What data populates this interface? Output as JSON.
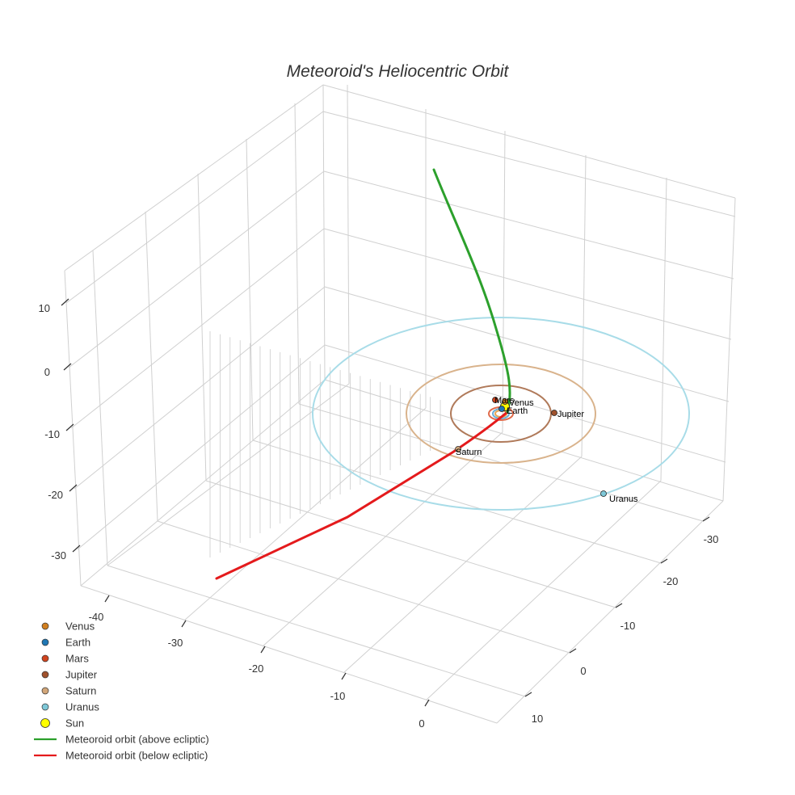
{
  "chart_data": {
    "type": "scatter3d",
    "title": "Meteoroid's Heliocentric Orbit",
    "axes": {
      "x": {
        "ticks": [
          "-40",
          "-30",
          "-20",
          "-10",
          "0"
        ],
        "range": [
          -45,
          5
        ]
      },
      "y": {
        "ticks": [
          "-30",
          "-20",
          "-10",
          "0",
          "10"
        ],
        "range": [
          -35,
          15
        ]
      },
      "z": {
        "ticks": [
          "10",
          "0",
          "-10",
          "-20",
          "-30"
        ],
        "range": [
          -35,
          15
        ]
      }
    },
    "planets": [
      {
        "name": "Venus",
        "color": "#d17f1f",
        "orbit_radius_au": 0.72,
        "show_label": true
      },
      {
        "name": "Earth",
        "color": "#1f77b4",
        "orbit_radius_au": 1.0,
        "show_label": true
      },
      {
        "name": "Mars",
        "color": "#d1441f",
        "orbit_radius_au": 1.52,
        "show_label": true
      },
      {
        "name": "Jupiter",
        "color": "#a0522d",
        "orbit_radius_au": 5.2,
        "show_label": true
      },
      {
        "name": "Saturn",
        "color": "#d2a679",
        "orbit_radius_au": 9.5,
        "show_label": true
      },
      {
        "name": "Uranus",
        "color": "#7ec8d8",
        "orbit_radius_au": 19.2,
        "show_label": true
      }
    ],
    "orbit_colors": {
      "Venus": "#e7a653",
      "Earth": "#6baed6",
      "Mars": "#e06a4a",
      "Jupiter": "#b07a5a",
      "Saturn": "#d9b38c",
      "Uranus": "#a8dce8"
    },
    "sun": {
      "name": "Sun",
      "color": "#ffff00"
    },
    "meteoroid": {
      "above": {
        "name": "Meteoroid orbit (above ecliptic)",
        "color": "#2ca02c"
      },
      "below": {
        "name": "Meteoroid orbit (below ecliptic)",
        "color": "#e41a1c"
      }
    },
    "legend": [
      {
        "label": "Venus",
        "kind": "dot",
        "color": "#d17f1f"
      },
      {
        "label": "Earth",
        "kind": "dot",
        "color": "#1f77b4"
      },
      {
        "label": "Mars",
        "kind": "dot",
        "color": "#d1441f"
      },
      {
        "label": "Jupiter",
        "kind": "dot",
        "color": "#a0522d"
      },
      {
        "label": "Saturn",
        "kind": "dot",
        "color": "#d2a679"
      },
      {
        "label": "Uranus",
        "kind": "dot",
        "color": "#7ec8d8"
      },
      {
        "label": "Sun",
        "kind": "sun",
        "color": "#ffff00"
      },
      {
        "label": "Meteoroid orbit (above ecliptic)",
        "kind": "line",
        "color": "#2ca02c"
      },
      {
        "label": "Meteoroid orbit (below ecliptic)",
        "kind": "line",
        "color": "#e41a1c"
      }
    ]
  }
}
